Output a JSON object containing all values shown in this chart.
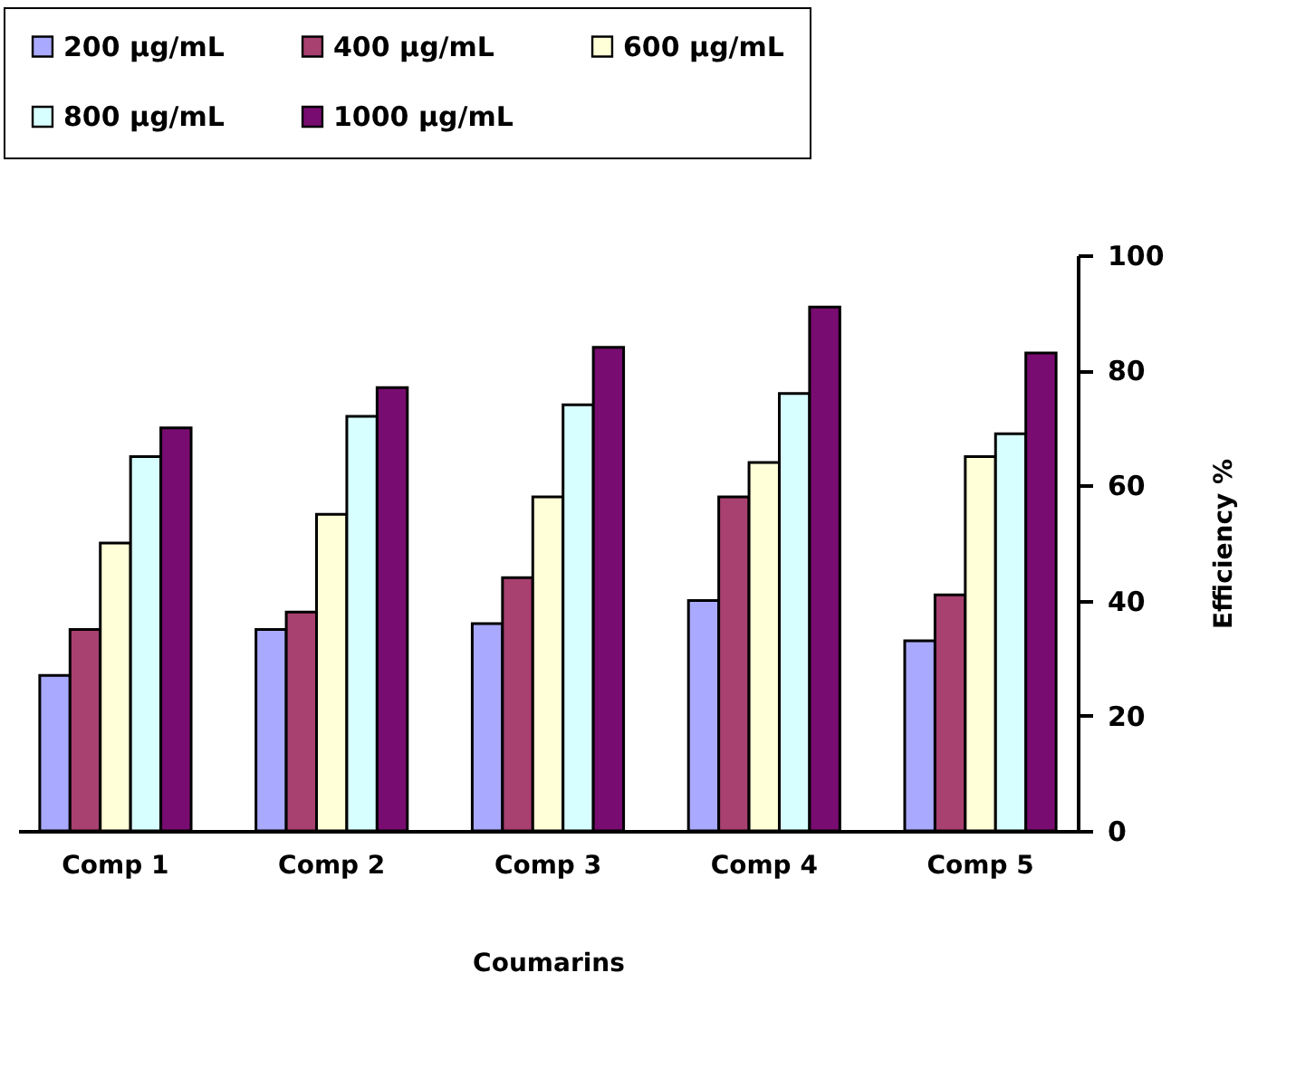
{
  "chart_data": {
    "type": "bar",
    "xlabel": "Coumarins",
    "ylabel": "Efficiency %",
    "categories": [
      "Comp 1",
      "Comp 2",
      "Comp 3",
      "Comp 4",
      "Comp 5"
    ],
    "series": [
      {
        "name": "200 µg/mL",
        "color": "#a9a9ff",
        "values": [
          27,
          35,
          36,
          40,
          33
        ]
      },
      {
        "name": "400 µg/mL",
        "color": "#a84070",
        "values": [
          35,
          38,
          44,
          58,
          41
        ]
      },
      {
        "name": "600 µg/mL",
        "color": "#ffffd8",
        "values": [
          50,
          55,
          58,
          64,
          65
        ]
      },
      {
        "name": "800 µg/mL",
        "color": "#d8ffff",
        "values": [
          65,
          72,
          74,
          76,
          69
        ]
      },
      {
        "name": "1000 µg/mL",
        "color": "#780c70",
        "values": [
          70,
          77,
          84,
          91,
          83
        ]
      }
    ],
    "ylim": [
      0,
      100
    ],
    "yticks": [
      0,
      20,
      40,
      60,
      80,
      100
    ],
    "grid": false,
    "legend": "top"
  }
}
